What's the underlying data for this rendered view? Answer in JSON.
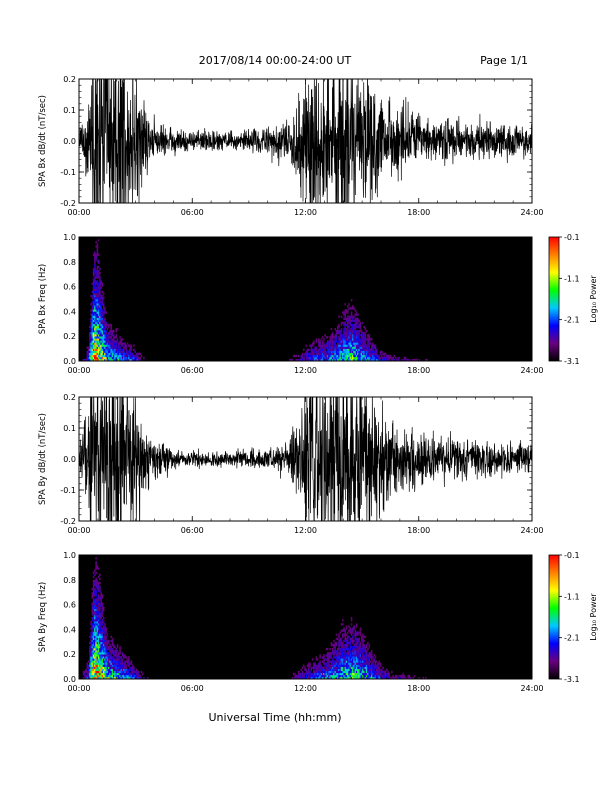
{
  "header": {
    "title": "2017/08/14  00:00-24:00 UT",
    "page": "Page 1/1"
  },
  "xaxis": {
    "label": "Universal Time (hh:mm)",
    "range_hours": [
      0,
      24
    ],
    "tick_hours": [
      0,
      6,
      12,
      18,
      24
    ],
    "tick_labels": [
      "00:00",
      "06:00",
      "12:00",
      "18:00",
      "24:00"
    ]
  },
  "colorbar": {
    "label": "Log₁₀ Power",
    "range": [
      -3.1,
      -0.1
    ],
    "tick_values": [
      -0.1,
      -1.1,
      -2.1,
      -3.1
    ],
    "tick_labels": [
      "-0.1",
      "-1.1",
      "-2.1",
      "-3.1"
    ],
    "colormap": [
      "#000000",
      "#6a0080",
      "#0000ff",
      "#00c8ff",
      "#00ff00",
      "#ffff00",
      "#ff8000",
      "#ff0000"
    ]
  },
  "chart_data": [
    {
      "type": "line",
      "id": "bx_timeseries",
      "ylabel": "SPA Bx dB/dt (nT/sec)",
      "ylim": [
        -0.2,
        0.2
      ],
      "y_ticks": [
        -0.2,
        -0.1,
        0.0,
        0.1,
        0.2
      ],
      "y_tick_labels": [
        "-0.2",
        "-0.1",
        "0.0",
        "0.1",
        "0.2"
      ],
      "color": "#000000",
      "series": [
        {
          "x_hours": [
            0,
            0.5,
            0.8,
            1,
            1.5,
            2,
            2.5,
            3,
            3.5,
            4,
            5,
            6,
            7,
            8,
            9,
            10,
            11,
            11.5,
            12,
            12.5,
            13,
            13.5,
            14,
            14.5,
            15,
            15.5,
            16,
            16.5,
            17,
            17.5,
            18,
            19,
            20,
            21,
            22,
            23,
            24
          ],
          "amplitude": [
            0.03,
            0.12,
            0.3,
            0.3,
            0.3,
            0.3,
            0.25,
            0.2,
            0.09,
            0.05,
            0.04,
            0.035,
            0.03,
            0.025,
            0.03,
            0.04,
            0.06,
            0.1,
            0.2,
            0.25,
            0.22,
            0.25,
            0.3,
            0.25,
            0.2,
            0.16,
            0.12,
            0.1,
            0.11,
            0.1,
            0.08,
            0.06,
            0.06,
            0.055,
            0.05,
            0.045,
            0.04
          ]
        }
      ]
    },
    {
      "type": "heatmap",
      "id": "bx_spectrogram",
      "ylabel": "SPA Bx Freq (Hz)",
      "ylim": [
        0.0,
        1.0
      ],
      "y_ticks": [
        0.0,
        0.2,
        0.4,
        0.6,
        0.8,
        1.0
      ],
      "y_tick_labels": [
        "0.0",
        "0.2",
        "0.4",
        "0.6",
        "0.8",
        "1.0"
      ],
      "colorbar_range": [
        -3.1,
        -0.1
      ],
      "activity": {
        "x_hours": [
          0,
          0.5,
          0.8,
          1,
          1.5,
          2,
          2.5,
          3,
          3.5,
          4,
          5,
          6,
          7,
          8,
          9,
          10,
          11,
          11.5,
          12,
          12.5,
          13,
          13.5,
          14,
          14.5,
          15,
          15.5,
          16,
          16.5,
          17,
          17.5,
          18,
          19,
          20,
          21,
          22,
          23,
          24
        ],
        "level": [
          0.05,
          0.3,
          1.0,
          0.9,
          0.6,
          0.5,
          0.4,
          0.35,
          0.15,
          0.08,
          0.04,
          0.03,
          0.02,
          0.02,
          0.03,
          0.05,
          0.1,
          0.2,
          0.3,
          0.35,
          0.4,
          0.45,
          0.55,
          0.6,
          0.5,
          0.4,
          0.3,
          0.2,
          0.2,
          0.18,
          0.15,
          0.1,
          0.08,
          0.07,
          0.06,
          0.05,
          0.05
        ],
        "max_freq_hz": [
          0.05,
          0.3,
          1.0,
          1.0,
          0.4,
          0.35,
          0.25,
          0.2,
          0.1,
          0.05,
          0.04,
          0.03,
          0.03,
          0.03,
          0.04,
          0.06,
          0.1,
          0.2,
          0.25,
          0.3,
          0.35,
          0.4,
          0.55,
          0.6,
          0.45,
          0.3,
          0.2,
          0.15,
          0.12,
          0.1,
          0.1,
          0.08,
          0.06,
          0.05,
          0.05,
          0.05,
          0.05
        ]
      }
    },
    {
      "type": "line",
      "id": "by_timeseries",
      "ylabel": "SPA By dB/dt (nT/sec)",
      "ylim": [
        -0.2,
        0.2
      ],
      "y_ticks": [
        -0.2,
        -0.1,
        0.0,
        0.1,
        0.2
      ],
      "y_tick_labels": [
        "-0.2",
        "-0.1",
        "0.0",
        "0.1",
        "0.2"
      ],
      "color": "#000000",
      "series": [
        {
          "x_hours": [
            0,
            0.5,
            0.8,
            1,
            1.5,
            2,
            2.5,
            3,
            3.5,
            4,
            5,
            6,
            7,
            8,
            9,
            10,
            11,
            11.5,
            12,
            12.5,
            13,
            13.5,
            14,
            14.5,
            15,
            15.5,
            16,
            16.5,
            17,
            17.5,
            18,
            19,
            20,
            21,
            22,
            23,
            24
          ],
          "amplitude": [
            0.03,
            0.15,
            0.3,
            0.3,
            0.3,
            0.3,
            0.25,
            0.2,
            0.1,
            0.06,
            0.03,
            0.02,
            0.02,
            0.02,
            0.025,
            0.03,
            0.05,
            0.1,
            0.2,
            0.25,
            0.22,
            0.28,
            0.3,
            0.28,
            0.22,
            0.2,
            0.15,
            0.12,
            0.1,
            0.1,
            0.08,
            0.06,
            0.055,
            0.05,
            0.05,
            0.045,
            0.04
          ]
        }
      ]
    },
    {
      "type": "heatmap",
      "id": "by_spectrogram",
      "ylabel": "SPA By Freq (Hz)",
      "ylim": [
        0.0,
        1.0
      ],
      "y_ticks": [
        0.0,
        0.2,
        0.4,
        0.6,
        0.8,
        1.0
      ],
      "y_tick_labels": [
        "0.0",
        "0.2",
        "0.4",
        "0.6",
        "0.8",
        "1.0"
      ],
      "colorbar_range": [
        -3.1,
        -0.1
      ],
      "activity": {
        "x_hours": [
          0,
          0.5,
          0.8,
          1,
          1.5,
          2,
          2.5,
          3,
          3.5,
          4,
          5,
          6,
          7,
          8,
          9,
          10,
          11,
          11.5,
          12,
          12.5,
          13,
          13.5,
          14,
          14.5,
          15,
          15.5,
          16,
          16.5,
          17,
          17.5,
          18,
          19,
          20,
          21,
          22,
          23,
          24
        ],
        "level": [
          0.05,
          0.35,
          1.0,
          0.9,
          0.65,
          0.55,
          0.45,
          0.35,
          0.15,
          0.08,
          0.03,
          0.02,
          0.02,
          0.02,
          0.03,
          0.05,
          0.1,
          0.2,
          0.3,
          0.35,
          0.4,
          0.45,
          0.55,
          0.6,
          0.55,
          0.45,
          0.3,
          0.22,
          0.2,
          0.18,
          0.15,
          0.1,
          0.08,
          0.07,
          0.06,
          0.05,
          0.05
        ],
        "max_freq_hz": [
          0.05,
          0.35,
          1.0,
          1.0,
          0.45,
          0.4,
          0.3,
          0.2,
          0.1,
          0.05,
          0.03,
          0.03,
          0.03,
          0.03,
          0.04,
          0.06,
          0.1,
          0.2,
          0.25,
          0.3,
          0.35,
          0.45,
          0.6,
          0.6,
          0.5,
          0.35,
          0.25,
          0.18,
          0.15,
          0.12,
          0.1,
          0.08,
          0.06,
          0.05,
          0.05,
          0.05,
          0.05
        ]
      }
    }
  ]
}
